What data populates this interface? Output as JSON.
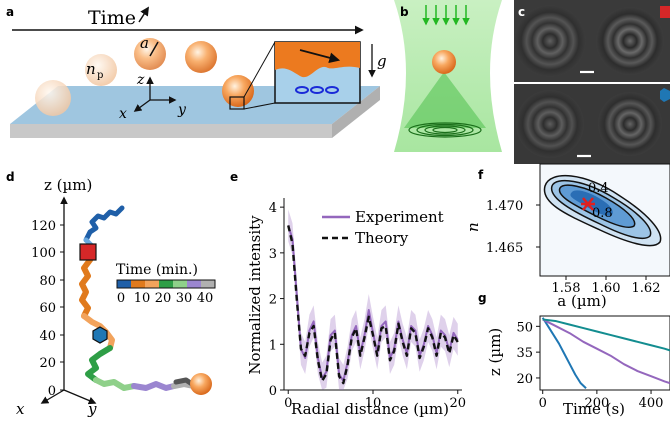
{
  "panels": {
    "a": "a",
    "b": "b",
    "c": "c",
    "d": "d",
    "e": "e",
    "f": "f",
    "g": "g"
  },
  "panel_a": {
    "time_label": "Time",
    "radius_label": "a",
    "index_label": "n",
    "index_sub": "p",
    "axis_x": "x",
    "axis_y": "y",
    "axis_z": "z",
    "gravity_label": "g"
  },
  "panel_d": {
    "z_axis_label": "z (µm)",
    "z_ticks": [
      "0",
      "20",
      "40",
      "60",
      "80",
      "100",
      "120"
    ],
    "x_axis": "x",
    "y_axis": "y",
    "time_colorbar": {
      "title": "Time (min.)",
      "ticks": [
        "0",
        "10",
        "20",
        "30",
        "40"
      ]
    },
    "marker_square_color": "#d62728",
    "marker_hexagon_color": "#1f77b4"
  },
  "panel_f": {
    "xlabel": "a (µm)",
    "ylabel": "n",
    "ylabel_sub": "p",
    "contour_labels": [
      "0.4",
      "0.8"
    ]
  },
  "chart_data": [
    {
      "type": "line",
      "panel": "e",
      "xlabel": "Radial distance (µm)",
      "ylabel": "Normalized intensity",
      "xlim": [
        -0.5,
        20.5
      ],
      "ylim": [
        0,
        4.2
      ],
      "xticks": [
        0,
        10,
        20
      ],
      "yticks": [
        0,
        1,
        2,
        3,
        4
      ],
      "legend": "top-right",
      "series": [
        {
          "name": "Experiment",
          "color": "#9467bd",
          "x": [
            0,
            0.5,
            1,
            1.5,
            2,
            2.5,
            3,
            3.5,
            4,
            4.5,
            5,
            5.5,
            6,
            6.5,
            7,
            7.5,
            8,
            8.5,
            9,
            9.5,
            10,
            10.5,
            11,
            11.5,
            12,
            12.5,
            13,
            13.5,
            14,
            14.5,
            15,
            15.5,
            16,
            16.5,
            17,
            17.5,
            18,
            18.5,
            19,
            19.5,
            20
          ],
          "y": [
            3.6,
            3.3,
            2.1,
            0.9,
            0.7,
            1.3,
            1.5,
            0.7,
            0.25,
            0.4,
            1.2,
            1.3,
            0.35,
            0.2,
            0.6,
            1.2,
            1.4,
            0.8,
            1.2,
            1.75,
            1.25,
            0.8,
            1.4,
            1.5,
            0.7,
            0.9,
            1.5,
            1.1,
            0.8,
            1.4,
            1.3,
            0.75,
            1.0,
            1.4,
            1.2,
            0.8,
            1.3,
            1.2,
            0.85,
            1.25,
            1.1
          ]
        },
        {
          "name": "Theory",
          "color": "#111111",
          "dashed": true,
          "x": [
            0,
            0.5,
            1,
            1.5,
            2,
            2.5,
            3,
            3.5,
            4,
            4.5,
            5,
            5.5,
            6,
            6.5,
            7,
            7.5,
            8,
            8.5,
            9,
            9.5,
            10,
            10.5,
            11,
            11.5,
            12,
            12.5,
            13,
            13.5,
            14,
            14.5,
            15,
            15.5,
            16,
            16.5,
            17,
            17.5,
            18,
            18.5,
            19,
            19.5,
            20
          ],
          "y": [
            3.6,
            3.2,
            2.0,
            0.9,
            0.75,
            1.25,
            1.4,
            0.65,
            0.2,
            0.35,
            1.1,
            1.25,
            0.3,
            0.15,
            0.55,
            1.15,
            1.35,
            0.75,
            1.15,
            1.6,
            1.2,
            0.75,
            1.35,
            1.4,
            0.65,
            0.85,
            1.45,
            1.05,
            0.75,
            1.35,
            1.25,
            0.7,
            0.95,
            1.35,
            1.15,
            0.75,
            1.25,
            1.15,
            0.8,
            1.2,
            1.05
          ]
        }
      ]
    },
    {
      "type": "line",
      "panel": "g",
      "xlabel": "Time (s)",
      "ylabel": "z (µm)",
      "xlim": [
        -10,
        470
      ],
      "ylim": [
        13,
        56
      ],
      "xticks": [
        0,
        200,
        400
      ],
      "yticks": [
        20,
        35,
        50
      ],
      "series": [
        {
          "color": "#1f77b4",
          "x": [
            0,
            20,
            40,
            60,
            80,
            100,
            120,
            140,
            160
          ],
          "y": [
            55,
            50,
            45,
            40,
            34,
            28,
            22,
            17,
            14
          ]
        },
        {
          "color": "#9467bd",
          "x": [
            0,
            50,
            100,
            150,
            200,
            250,
            300,
            350,
            400,
            450,
            470
          ],
          "y": [
            54,
            50,
            46,
            41,
            37,
            33,
            28,
            24,
            21,
            18,
            17
          ]
        },
        {
          "color": "#138d90",
          "x": [
            0,
            50,
            100,
            150,
            200,
            250,
            300,
            350,
            400,
            450,
            470
          ],
          "y": [
            54,
            53,
            51,
            49,
            47,
            45,
            43,
            41,
            39,
            37,
            36
          ]
        }
      ]
    }
  ]
}
